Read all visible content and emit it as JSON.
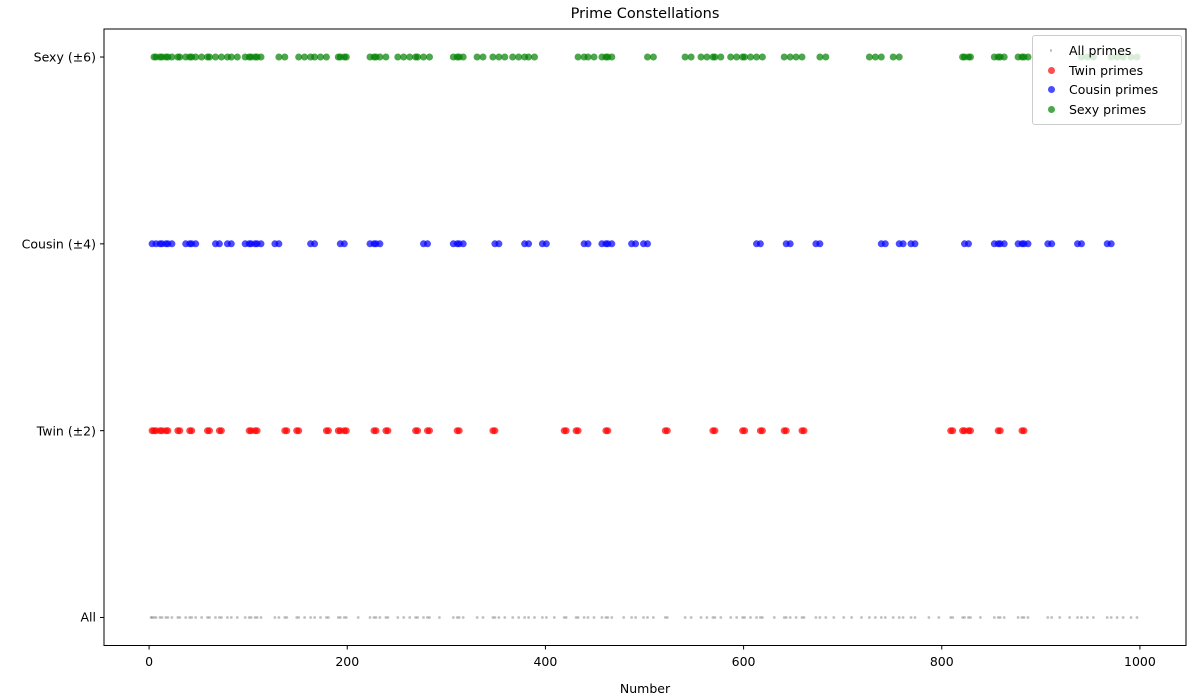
{
  "chart_data": {
    "type": "scatter",
    "title": "Prime Constellations",
    "xlabel": "Number",
    "ylabel": "",
    "grid": false,
    "legend_position": "upper right",
    "x_axis": {
      "ticks": [
        0,
        200,
        400,
        600,
        800,
        1000
      ],
      "range": [
        -45.5,
        1046.5
      ]
    },
    "y_axis": {
      "categories": [
        "All",
        "Twin (±2)",
        "Cousin (±4)",
        "Sexy (±6)"
      ],
      "range": [
        -0.15,
        3.15
      ]
    },
    "series": [
      {
        "name": "All primes",
        "row": 0,
        "color": "#7f7f7f",
        "alpha": 0.5,
        "radius": 1.4,
        "values": [
          2,
          3,
          5,
          7,
          11,
          13,
          17,
          19,
          23,
          29,
          31,
          37,
          41,
          43,
          47,
          53,
          59,
          61,
          67,
          71,
          73,
          79,
          83,
          89,
          97,
          101,
          103,
          107,
          109,
          113,
          127,
          131,
          137,
          139,
          149,
          151,
          157,
          163,
          167,
          173,
          179,
          181,
          191,
          193,
          197,
          199,
          211,
          223,
          227,
          229,
          233,
          239,
          241,
          251,
          257,
          263,
          269,
          271,
          277,
          281,
          283,
          293,
          307,
          311,
          313,
          317,
          331,
          337,
          347,
          349,
          353,
          359,
          367,
          373,
          379,
          383,
          389,
          397,
          401,
          409,
          419,
          421,
          431,
          433,
          439,
          443,
          449,
          457,
          461,
          463,
          467,
          479,
          487,
          491,
          499,
          503,
          509,
          521,
          523,
          541,
          547,
          557,
          563,
          569,
          571,
          577,
          587,
          593,
          599,
          601,
          607,
          613,
          617,
          619,
          631,
          641,
          643,
          647,
          653,
          659,
          661,
          673,
          677,
          683,
          691,
          701,
          709,
          719,
          727,
          733,
          739,
          743,
          751,
          757,
          761,
          769,
          773,
          787,
          797,
          809,
          811,
          821,
          823,
          827,
          829,
          839,
          853,
          857,
          859,
          863,
          877,
          881,
          883,
          887,
          907,
          911,
          919,
          929,
          937,
          941,
          947,
          953,
          967,
          971,
          977,
          983,
          991,
          997
        ]
      },
      {
        "name": "Twin primes",
        "row": 1,
        "color": "#ff0000",
        "alpha": 0.7,
        "radius": 3.5,
        "values": [
          3,
          5,
          7,
          11,
          13,
          17,
          19,
          29,
          31,
          41,
          43,
          59,
          61,
          71,
          73,
          101,
          103,
          107,
          109,
          137,
          139,
          149,
          151,
          179,
          181,
          191,
          193,
          197,
          199,
          227,
          229,
          239,
          241,
          269,
          271,
          281,
          283,
          311,
          313,
          347,
          349,
          419,
          421,
          431,
          433,
          461,
          463,
          521,
          523,
          569,
          571,
          599,
          601,
          617,
          619,
          641,
          643,
          659,
          661,
          809,
          811,
          821,
          823,
          827,
          829,
          857,
          859,
          881,
          883
        ]
      },
      {
        "name": "Cousin primes",
        "row": 2,
        "color": "#0000ff",
        "alpha": 0.7,
        "radius": 3.5,
        "values": [
          3,
          7,
          11,
          13,
          17,
          19,
          23,
          37,
          41,
          43,
          47,
          67,
          71,
          79,
          83,
          97,
          101,
          103,
          107,
          109,
          113,
          127,
          131,
          163,
          167,
          193,
          197,
          223,
          227,
          229,
          233,
          277,
          281,
          307,
          311,
          313,
          317,
          349,
          353,
          379,
          383,
          397,
          401,
          439,
          443,
          457,
          461,
          463,
          467,
          487,
          491,
          499,
          503,
          613,
          617,
          643,
          647,
          673,
          677,
          739,
          743,
          757,
          761,
          769,
          773,
          823,
          827,
          853,
          857,
          859,
          863,
          877,
          881,
          883,
          887,
          907,
          911,
          937,
          941,
          967,
          971
        ]
      },
      {
        "name": "Sexy primes",
        "row": 3,
        "color": "#008000",
        "alpha": 0.7,
        "radius": 3.5,
        "values": [
          5,
          7,
          11,
          13,
          17,
          19,
          23,
          29,
          31,
          37,
          41,
          43,
          47,
          53,
          59,
          61,
          67,
          73,
          79,
          83,
          89,
          97,
          101,
          103,
          107,
          109,
          113,
          131,
          137,
          151,
          157,
          163,
          167,
          173,
          179,
          191,
          193,
          197,
          199,
          223,
          227,
          229,
          233,
          239,
          251,
          257,
          263,
          269,
          271,
          277,
          283,
          307,
          311,
          313,
          317,
          331,
          337,
          347,
          353,
          359,
          367,
          373,
          379,
          383,
          389,
          433,
          439,
          443,
          449,
          457,
          461,
          463,
          467,
          503,
          509,
          541,
          547,
          557,
          563,
          569,
          571,
          577,
          587,
          593,
          599,
          601,
          607,
          613,
          619,
          641,
          647,
          653,
          659,
          677,
          683,
          727,
          733,
          739,
          751,
          757,
          821,
          823,
          827,
          829,
          853,
          857,
          859,
          863,
          877,
          881,
          883,
          887,
          941,
          947,
          953,
          971,
          977,
          983,
          991,
          997
        ]
      }
    ]
  }
}
